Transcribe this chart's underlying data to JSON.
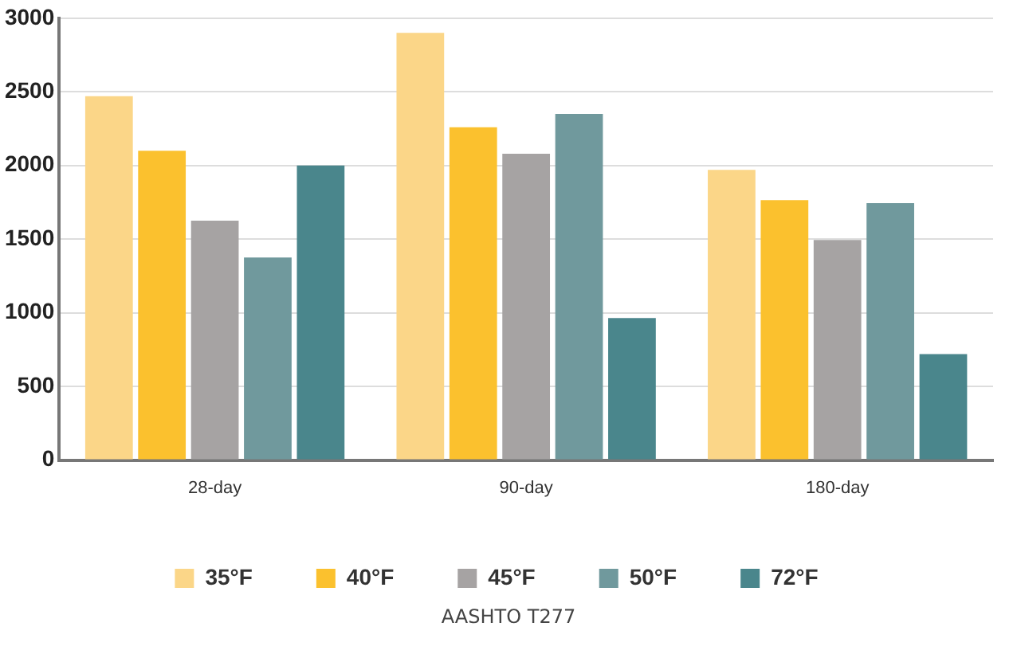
{
  "chart_data": {
    "type": "bar",
    "categories": [
      "28-day",
      "90-day",
      "180-day"
    ],
    "series": [
      {
        "name": "35°F",
        "color": "#fbd688",
        "values": [
          2470,
          2900,
          1970
        ]
      },
      {
        "name": "40°F",
        "color": "#fbc12e",
        "values": [
          2100,
          2260,
          1765
        ]
      },
      {
        "name": "45°F",
        "color": "#a6a3a3",
        "values": [
          1625,
          2080,
          1495
        ]
      },
      {
        "name": "50°F",
        "color": "#70999d",
        "values": [
          1375,
          2350,
          1745
        ]
      },
      {
        "name": "72°F",
        "color": "#4a868c",
        "values": [
          2000,
          965,
          720
        ]
      }
    ],
    "ylim": [
      0,
      3000
    ],
    "yticks": [
      0,
      500,
      1000,
      1500,
      2000,
      2500,
      3000
    ],
    "grid": "y",
    "legend": "bottom",
    "annotations": [
      "AASHTO T277"
    ]
  }
}
